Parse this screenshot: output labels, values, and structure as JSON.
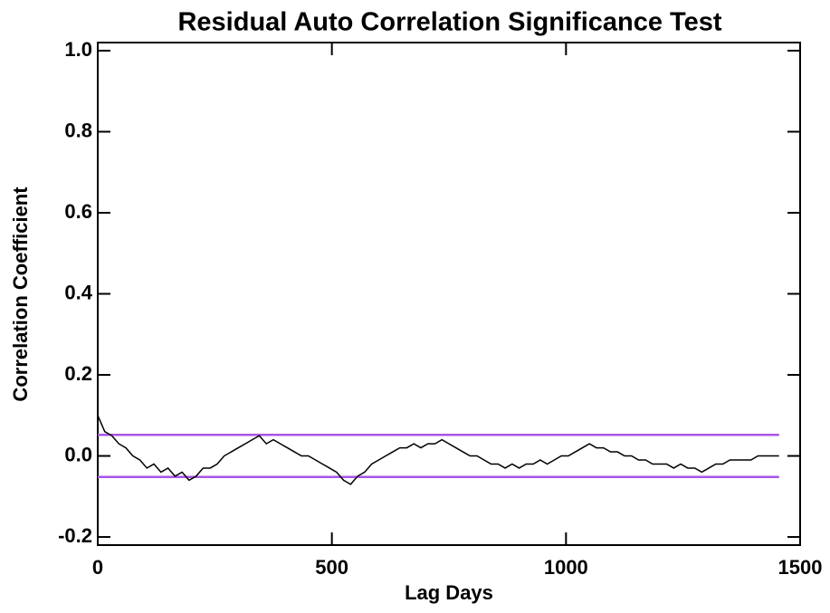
{
  "chart_data": {
    "type": "line",
    "title": "Residual Auto Correlation Significance Test",
    "x_label": "Lag Days",
    "y_label": "Correlation Coefficient",
    "x": [
      0,
      15,
      30,
      45,
      60,
      75,
      90,
      105,
      120,
      135,
      150,
      165,
      180,
      195,
      210,
      225,
      240,
      255,
      270,
      285,
      300,
      315,
      330,
      345,
      360,
      375,
      390,
      405,
      420,
      435,
      450,
      465,
      480,
      495,
      510,
      525,
      540,
      555,
      570,
      585,
      600,
      615,
      630,
      645,
      660,
      675,
      690,
      705,
      720,
      735,
      750,
      765,
      780,
      795,
      810,
      825,
      840,
      855,
      870,
      885,
      900,
      915,
      930,
      945,
      960,
      975,
      990,
      1005,
      1020,
      1035,
      1050,
      1065,
      1080,
      1095,
      1110,
      1125,
      1140,
      1155,
      1170,
      1185,
      1200,
      1215,
      1230,
      1245,
      1260,
      1275,
      1290,
      1305,
      1320,
      1335,
      1350,
      1365,
      1380,
      1395,
      1410,
      1425,
      1440,
      1455
    ],
    "series": [
      {
        "color": "#000000",
        "values": [
          0.1,
          0.06,
          0.05,
          0.03,
          0.02,
          0.0,
          -0.01,
          -0.03,
          -0.02,
          -0.04,
          -0.03,
          -0.05,
          -0.04,
          -0.06,
          -0.05,
          -0.03,
          -0.03,
          -0.02,
          0.0,
          0.01,
          0.02,
          0.03,
          0.04,
          0.05,
          0.03,
          0.04,
          0.03,
          0.02,
          0.01,
          0.0,
          0.0,
          -0.01,
          -0.02,
          -0.03,
          -0.04,
          -0.06,
          -0.07,
          -0.05,
          -0.04,
          -0.02,
          -0.01,
          0.0,
          0.01,
          0.02,
          0.02,
          0.03,
          0.02,
          0.03,
          0.03,
          0.04,
          0.03,
          0.02,
          0.01,
          0.0,
          0.0,
          -0.01,
          -0.02,
          -0.02,
          -0.03,
          -0.02,
          -0.03,
          -0.02,
          -0.02,
          -0.01,
          -0.02,
          -0.01,
          0.0,
          0.0,
          0.01,
          0.02,
          0.03,
          0.02,
          0.02,
          0.01,
          0.01,
          0.0,
          0.0,
          -0.01,
          -0.01,
          -0.02,
          -0.02,
          -0.02,
          -0.03,
          -0.02,
          -0.03,
          -0.03,
          -0.04,
          -0.03,
          -0.02,
          -0.02,
          -0.01,
          -0.01,
          -0.01,
          -0.01,
          0.0,
          0.0,
          0.0,
          0.0
        ]
      }
    ],
    "threshold_lines": {
      "color": "#a855e8",
      "values": [
        0.052,
        -0.052
      ]
    },
    "xlim": [
      0,
      1500
    ],
    "xticks": [
      0,
      500,
      1000,
      1500
    ],
    "ylim": [
      -0.22,
      1.02
    ],
    "yticks": [
      {
        "value": -0.2,
        "label": "-0.2"
      },
      {
        "value": 0,
        "label": "0.0"
      },
      {
        "value": 0.2,
        "label": "0.2"
      },
      {
        "value": 0.4,
        "label": "0.4"
      },
      {
        "value": 0.6,
        "label": "0.6"
      },
      {
        "value": 0.8,
        "label": "0.8"
      },
      {
        "value": 1,
        "label": "1.0"
      }
    ]
  }
}
